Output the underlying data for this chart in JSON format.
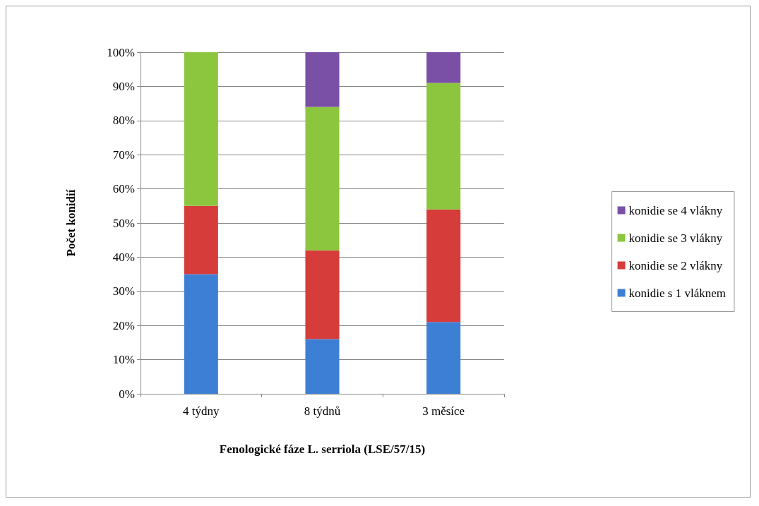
{
  "chart_data": {
    "type": "bar",
    "stacked": true,
    "xlabel": "Fenologické fáze L. serriola (LSE/57/15)",
    "ylabel": "Počet konidií",
    "categories": [
      "4 týdny",
      "8 týdnů",
      "3 měsíce"
    ],
    "series": [
      {
        "name": "konidie s 1 vláknem",
        "color": "#3e7fd6",
        "values": [
          35,
          16,
          21
        ]
      },
      {
        "name": "konidie se 2 vlákny",
        "color": "#d63c3a",
        "values": [
          20,
          26,
          33
        ]
      },
      {
        "name": "konidie se 3 vlákny",
        "color": "#8cc63e",
        "values": [
          45,
          42,
          37
        ]
      },
      {
        "name": "konidie se 4 vlákny",
        "color": "#7a4fa6",
        "values": [
          0,
          16,
          9
        ]
      }
    ],
    "ylim": [
      0,
      100
    ],
    "yticks": [
      {
        "value": 0,
        "label": "0%"
      },
      {
        "value": 10,
        "label": "10%"
      },
      {
        "value": 20,
        "label": "20%"
      },
      {
        "value": 30,
        "label": "30%"
      },
      {
        "value": 40,
        "label": "40%"
      },
      {
        "value": 50,
        "label": "50%"
      },
      {
        "value": 60,
        "label": "60%"
      },
      {
        "value": 70,
        "label": "70%"
      },
      {
        "value": 80,
        "label": "80%"
      },
      {
        "value": 90,
        "label": "90%"
      },
      {
        "value": 100,
        "label": "100%"
      }
    ],
    "grid": "y",
    "legend": "right"
  }
}
